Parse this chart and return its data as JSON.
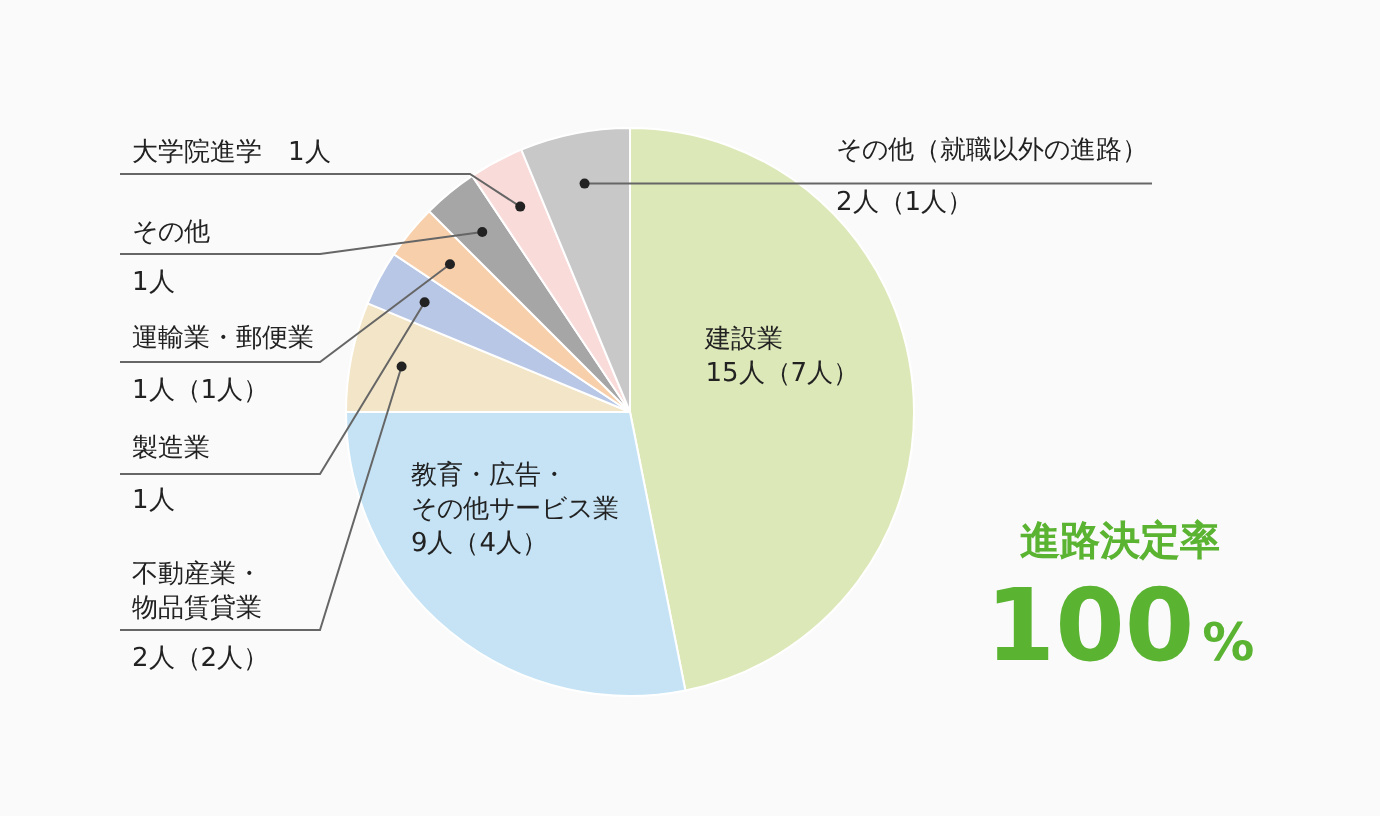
{
  "chart_data": {
    "type": "pie",
    "categories": [
      "建設業",
      "教育・広告・その他サービス業",
      "不動産業・物品賃貸業",
      "製造業",
      "運輸業・郵便業",
      "その他",
      "大学院進学",
      "その他（就職以外の進路）"
    ],
    "values": [
      15,
      9,
      2,
      1,
      1,
      1,
      1,
      2
    ],
    "value_labels": [
      "15人（7人）",
      "9人（4人）",
      "2人（2人）",
      "1人",
      "1人（1人）",
      "1人",
      "1人",
      "2人（1人）"
    ],
    "colors": [
      "#dde8b9",
      "#c5e3f5",
      "#f3e6c8",
      "#b8c7e6",
      "#f8cfab",
      "#a6a6a6",
      "#f9dcda",
      "#c8c8c8"
    ],
    "annotations": [
      "進路決定率",
      "100%"
    ]
  }
}
